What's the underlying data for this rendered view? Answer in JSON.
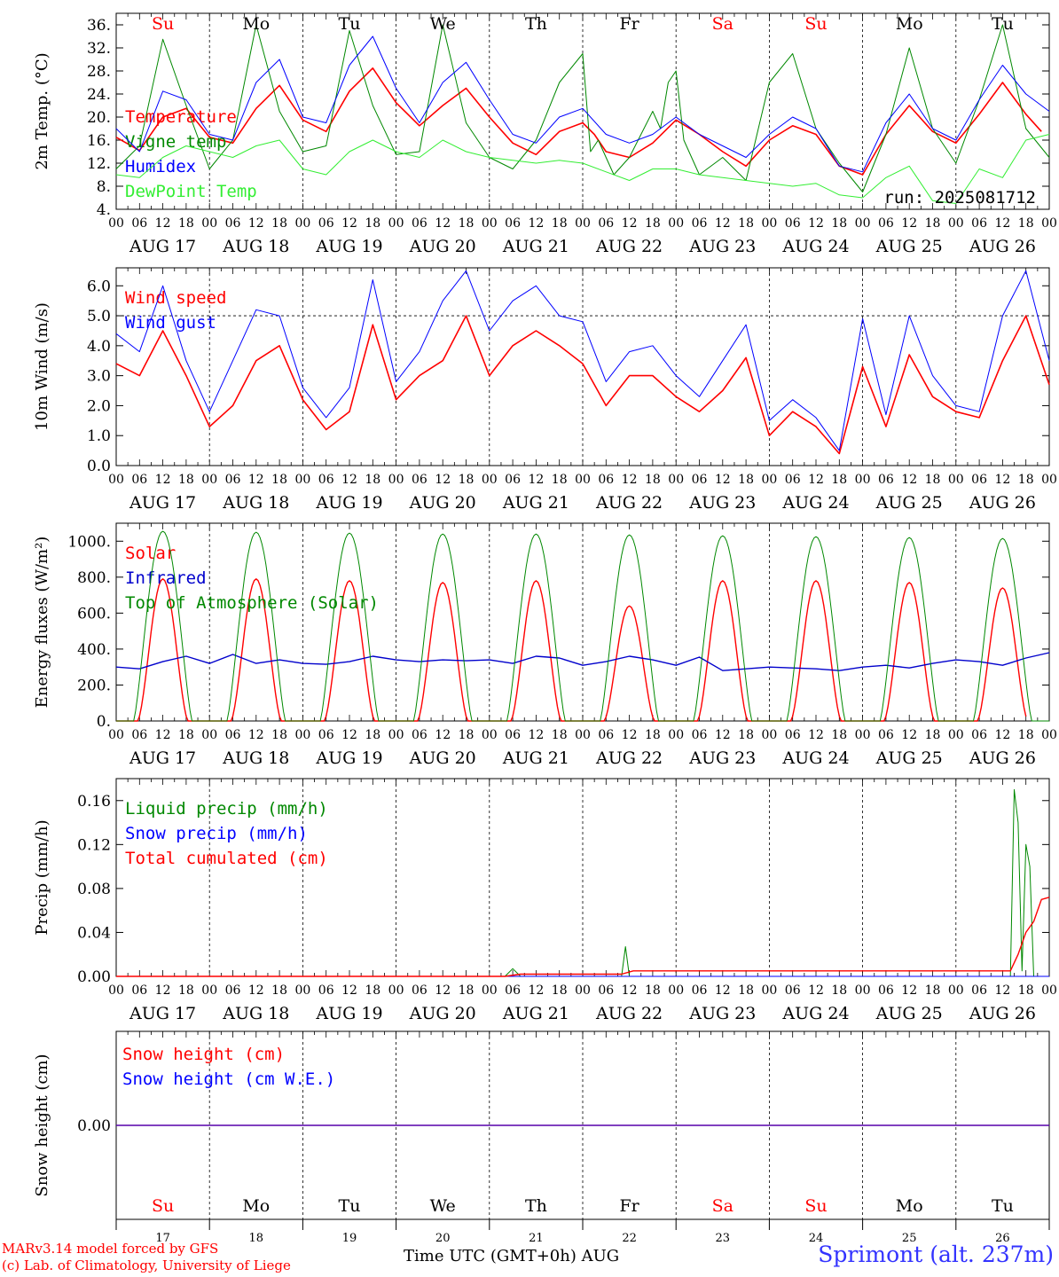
{
  "colors": {
    "red": "#ff0000",
    "green": "#008800",
    "lightgreen": "#33ee33",
    "blue": "#0000ff",
    "darkblue": "#0000cc",
    "weekend": "#ff0000",
    "weekday": "#000000"
  },
  "days": [
    "Su",
    "Mo",
    "Tu",
    "We",
    "Th",
    "Fr",
    "Sa",
    "Su",
    "Mo",
    "Tu"
  ],
  "weekend": [
    true,
    false,
    false,
    false,
    false,
    false,
    true,
    true,
    false,
    false
  ],
  "dates": [
    "17",
    "18",
    "19",
    "20",
    "21",
    "22",
    "23",
    "24",
    "25",
    "26"
  ],
  "month": "AUG",
  "hour_ticks": [
    "00",
    "06",
    "12",
    "18"
  ],
  "x_title": "Time UTC (GMT+0h)",
  "credit": [
    "MARv3.14 model forced by GFS",
    "(c) Lab. of Climatology, University of Liege"
  ],
  "station": "Sprimont (alt. 237m)",
  "chart_data": [
    {
      "type": "line",
      "ylabel": "2m Temp. (°C)",
      "ylim": [
        4,
        38
      ],
      "yticks": [
        4,
        8,
        12,
        16,
        20,
        24,
        28,
        32,
        36
      ],
      "ytick_labels": [
        "4.",
        "8.",
        "12.",
        "16.",
        "20.",
        "24.",
        "28.",
        "32.",
        "36."
      ],
      "run_label": "run: 2025081712",
      "series": [
        {
          "name": "Temperature",
          "color": "#ff0000",
          "width": 1.6,
          "x": [
            0,
            6,
            12,
            18,
            24,
            30,
            36,
            42,
            48,
            54,
            60,
            66,
            72,
            78,
            84,
            90,
            96,
            102,
            108,
            114,
            120,
            123,
            126,
            132,
            138,
            144,
            150,
            156,
            162,
            168,
            174,
            180,
            186,
            192,
            198,
            204,
            210,
            216,
            222,
            228,
            234,
            238
          ],
          "y": [
            16.5,
            14.2,
            20,
            21.5,
            16.5,
            15.5,
            21.5,
            25.5,
            19.5,
            17.5,
            24.5,
            28.5,
            22.5,
            18.5,
            22,
            25,
            20,
            15.5,
            13.5,
            17.5,
            19,
            17,
            14,
            13,
            15.5,
            19.5,
            17,
            14,
            11.5,
            16,
            18.5,
            17,
            11.5,
            10,
            17,
            22,
            17.5,
            15.5,
            20.5,
            26,
            20.5,
            17.5
          ]
        },
        {
          "name": "Vigne temp",
          "color": "#008800",
          "width": 1,
          "x": [
            0,
            6,
            12,
            18,
            24,
            30,
            36,
            42,
            48,
            54,
            60,
            66,
            72,
            78,
            84,
            90,
            96,
            102,
            108,
            114,
            120,
            122,
            124,
            128,
            132,
            138,
            140,
            142,
            144,
            146,
            150,
            156,
            162,
            168,
            174,
            180,
            186,
            192,
            198,
            204,
            210,
            216,
            222,
            228,
            234,
            240
          ],
          "y": [
            11,
            15,
            33.5,
            22,
            11,
            16,
            36,
            21,
            14,
            15,
            35,
            22,
            13.5,
            14,
            36,
            19,
            13,
            11,
            16,
            26,
            31,
            14,
            16,
            10,
            13,
            21,
            18,
            26,
            28,
            16,
            10,
            13,
            9,
            26,
            31,
            18,
            12,
            7,
            17,
            32,
            18,
            12,
            23,
            36,
            18,
            13
          ]
        },
        {
          "name": "Humidex",
          "color": "#0000ff",
          "width": 1,
          "x": [
            0,
            6,
            12,
            18,
            24,
            30,
            36,
            42,
            48,
            54,
            60,
            66,
            72,
            78,
            84,
            90,
            96,
            102,
            108,
            114,
            120,
            126,
            132,
            138,
            144,
            150,
            156,
            162,
            168,
            174,
            180,
            186,
            192,
            198,
            204,
            210,
            216,
            222,
            228,
            234,
            240
          ],
          "y": [
            18,
            14,
            24.5,
            23,
            17,
            16,
            26,
            30,
            20,
            19,
            29,
            34,
            25,
            19,
            26,
            29.5,
            23,
            17,
            15.5,
            20,
            21.5,
            17,
            15.5,
            17,
            20,
            17,
            15,
            13,
            17,
            20,
            18,
            11.5,
            10.5,
            19,
            24,
            18,
            16,
            23,
            29,
            24,
            21
          ]
        },
        {
          "name": "DewPoint Temp",
          "color": "#33ee33",
          "width": 1,
          "x": [
            0,
            6,
            12,
            18,
            24,
            30,
            36,
            42,
            48,
            54,
            60,
            66,
            72,
            78,
            84,
            90,
            96,
            102,
            108,
            114,
            120,
            126,
            132,
            138,
            144,
            150,
            156,
            162,
            168,
            174,
            180,
            186,
            192,
            198,
            204,
            210,
            216,
            222,
            228,
            234,
            240
          ],
          "y": [
            10,
            9.5,
            13,
            15,
            14,
            13,
            15,
            16,
            11,
            10,
            14,
            16,
            14,
            13,
            16,
            14,
            13,
            12.5,
            12,
            12.5,
            12,
            10.5,
            9,
            11,
            11,
            10,
            9.5,
            9,
            8.5,
            8,
            8.5,
            6.5,
            6,
            9.5,
            11.5,
            5.5,
            5,
            11,
            9.5,
            16,
            17
          ]
        }
      ]
    },
    {
      "type": "line",
      "ylabel": "10m Wind (m/s)",
      "ylim": [
        0,
        6.6
      ],
      "yticks": [
        0,
        1,
        2,
        3,
        4,
        5,
        6
      ],
      "ytick_labels": [
        "0.0",
        "1.0",
        "2.0",
        "3.0",
        "4.0",
        "5.0",
        "6.0"
      ],
      "refline": 5,
      "series": [
        {
          "name": "Wind speed",
          "color": "#ff0000",
          "width": 1.6,
          "x": [
            0,
            6,
            12,
            18,
            24,
            30,
            36,
            42,
            48,
            54,
            60,
            66,
            72,
            78,
            84,
            90,
            96,
            102,
            108,
            114,
            120,
            126,
            132,
            138,
            144,
            150,
            156,
            162,
            168,
            174,
            180,
            186,
            192,
            198,
            204,
            210,
            216,
            222,
            228,
            234,
            240
          ],
          "y": [
            3.4,
            3,
            4.5,
            3,
            1.3,
            2,
            3.5,
            4,
            2.2,
            1.2,
            1.8,
            4.7,
            2.2,
            3,
            3.5,
            5,
            3,
            4,
            4.5,
            4,
            3.4,
            2,
            3,
            3,
            2.3,
            1.8,
            2.5,
            3.6,
            1,
            1.8,
            1.3,
            0.4,
            3.3,
            1.3,
            3.7,
            2.3,
            1.8,
            1.6,
            3.5,
            5,
            2.7
          ]
        },
        {
          "name": "Wind gust",
          "color": "#0000ff",
          "width": 1,
          "x": [
            0,
            6,
            12,
            18,
            24,
            30,
            36,
            42,
            48,
            54,
            60,
            66,
            72,
            78,
            84,
            90,
            96,
            102,
            108,
            114,
            120,
            126,
            132,
            138,
            144,
            150,
            156,
            162,
            168,
            174,
            180,
            186,
            192,
            198,
            204,
            210,
            216,
            222,
            228,
            234,
            240
          ],
          "y": [
            4.4,
            3.8,
            6,
            3.5,
            1.8,
            3.5,
            5.2,
            5,
            2.6,
            1.6,
            2.6,
            6.2,
            2.8,
            3.8,
            5.5,
            6.5,
            4.5,
            5.5,
            6,
            5,
            4.8,
            2.8,
            3.8,
            4,
            3,
            2.3,
            3.5,
            4.7,
            1.5,
            2.2,
            1.6,
            0.5,
            4.9,
            1.7,
            5,
            3,
            2,
            1.8,
            5,
            6.5,
            3.5
          ]
        }
      ]
    },
    {
      "type": "line",
      "ylabel": "Energy fluxes (W/m²)",
      "ylim": [
        0,
        1100
      ],
      "yticks": [
        0,
        200,
        400,
        600,
        800,
        1000
      ],
      "ytick_labels": [
        "0.",
        "200.",
        "400.",
        "600.",
        "800.",
        "1000."
      ],
      "series": [
        {
          "name": "Solar",
          "color": "#ff0000",
          "width": 1.4,
          "peaks": [
            790,
            790,
            780,
            770,
            780,
            640,
            780,
            780,
            770,
            740
          ]
        },
        {
          "name": "Infrared",
          "color": "#0000cc",
          "width": 1.4,
          "x": [
            0,
            6,
            12,
            18,
            24,
            30,
            36,
            42,
            48,
            54,
            60,
            66,
            72,
            78,
            84,
            90,
            96,
            102,
            108,
            114,
            120,
            126,
            132,
            138,
            144,
            150,
            156,
            162,
            168,
            174,
            180,
            186,
            192,
            198,
            204,
            210,
            216,
            222,
            228,
            234,
            240
          ],
          "y": [
            300,
            290,
            330,
            360,
            320,
            370,
            320,
            340,
            320,
            315,
            330,
            360,
            340,
            330,
            340,
            335,
            340,
            320,
            360,
            350,
            310,
            330,
            360,
            340,
            310,
            355,
            280,
            290,
            300,
            295,
            290,
            280,
            300,
            310,
            295,
            320,
            340,
            330,
            310,
            350,
            380
          ]
        },
        {
          "name": "Top of Atmosphere (Solar)",
          "color": "#008800",
          "width": 1,
          "peaks": [
            1055,
            1050,
            1045,
            1040,
            1040,
            1035,
            1030,
            1025,
            1020,
            1015
          ]
        }
      ]
    },
    {
      "type": "line",
      "ylabel": "Precip (mm/h)",
      "ylim": [
        0,
        0.18
      ],
      "yticks": [
        0,
        0.04,
        0.08,
        0.12,
        0.16
      ],
      "ytick_labels": [
        "0.00",
        "0.04",
        "0.08",
        "0.12",
        "0.16"
      ],
      "series": [
        {
          "name": "Liquid precip (mm/h)",
          "color": "#008800",
          "width": 1,
          "x": [
            0,
            100,
            102,
            104,
            106,
            130,
            131,
            132,
            133,
            134,
            230,
            231,
            232,
            233,
            234,
            235,
            236,
            237,
            238,
            240
          ],
          "y": [
            0,
            0,
            0.007,
            0,
            0,
            0,
            0.027,
            0,
            0,
            0,
            0,
            0.17,
            0.14,
            0.005,
            0.12,
            0.1,
            0,
            0,
            0,
            0
          ]
        },
        {
          "name": "Snow precip (mm/h)",
          "color": "#0000ff",
          "width": 1,
          "x": [
            0,
            240
          ],
          "y": [
            0,
            0
          ]
        },
        {
          "name": "Total cumulated (cm)",
          "color": "#ff0000",
          "width": 1.4,
          "x": [
            0,
            100,
            104,
            130,
            133,
            230,
            232,
            234,
            236,
            238,
            240
          ],
          "y": [
            0,
            0,
            0.002,
            0.002,
            0.005,
            0.005,
            0.02,
            0.04,
            0.05,
            0.07,
            0.072
          ]
        }
      ]
    },
    {
      "type": "line",
      "ylabel": "Snow height (cm)",
      "ylim": [
        -1,
        1
      ],
      "yticks": [
        0
      ],
      "ytick_labels": [
        "0.00"
      ],
      "series": [
        {
          "name": "Snow height (cm)",
          "color": "#ff0000",
          "width": 1.4,
          "x": [
            0,
            240
          ],
          "y": [
            0,
            0
          ]
        },
        {
          "name": "Snow height (cm W.E.)",
          "color": "#0000ff",
          "width": 1,
          "x": [
            0,
            240
          ],
          "y": [
            0,
            0
          ]
        }
      ]
    }
  ]
}
